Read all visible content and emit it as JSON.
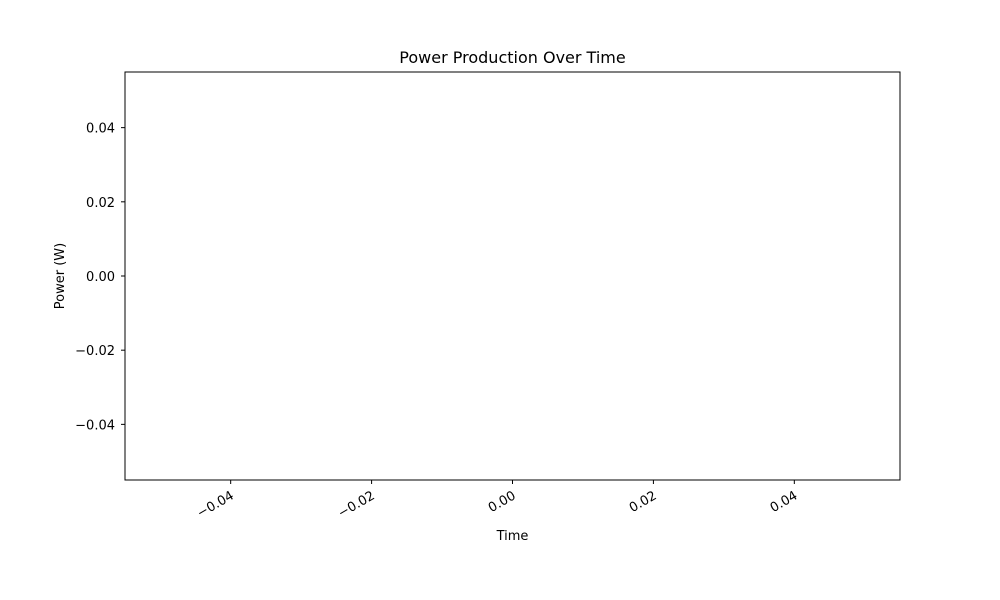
{
  "chart_data": {
    "type": "line",
    "title": "Power Production Over Time",
    "xlabel": "Time",
    "ylabel": "Power (W)",
    "xlim": [
      -0.055,
      0.055
    ],
    "ylim": [
      -0.055,
      0.055
    ],
    "x_ticks": [
      -0.04,
      -0.02,
      0.0,
      0.02,
      0.04
    ],
    "x_tick_labels": [
      "−0.04",
      "−0.02",
      "0.00",
      "0.02",
      "0.04"
    ],
    "y_ticks": [
      -0.04,
      -0.02,
      0.0,
      0.02,
      0.04
    ],
    "y_tick_labels": [
      "−0.04",
      "−0.02",
      "0.00",
      "0.02",
      "0.04"
    ],
    "x_tick_rotation_deg": 30,
    "grid": false,
    "series": [],
    "colors": {
      "axes": "#000000",
      "background": "#ffffff"
    }
  }
}
